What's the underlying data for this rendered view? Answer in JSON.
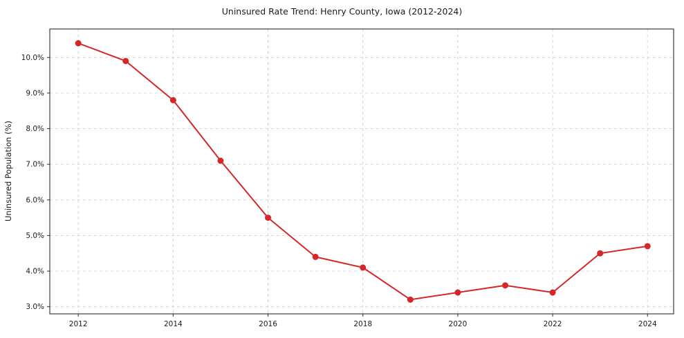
{
  "figure": {
    "background": "#ffffff",
    "frame_color": "#2b2b2b",
    "grid_color": "#d0d0d0",
    "text_color": "#1a1a1a"
  },
  "chart_data": {
    "type": "line",
    "title": "Uninsured Rate Trend: Henry County, Iowa (2012-2024)",
    "xlabel": "",
    "ylabel": "Uninsured Population (%)",
    "x": [
      2012,
      2013,
      2014,
      2015,
      2016,
      2017,
      2018,
      2019,
      2020,
      2021,
      2022,
      2023,
      2024
    ],
    "series": [
      {
        "name": "Uninsured Rate",
        "values": [
          10.4,
          9.9,
          8.8,
          7.1,
          5.5,
          4.4,
          4.1,
          3.2,
          3.4,
          3.6,
          3.4,
          4.5,
          4.7
        ]
      }
    ],
    "xlim": [
      2011.4,
      2024.55
    ],
    "ylim": [
      2.8,
      10.8
    ],
    "x_tick_values": [
      2012,
      2014,
      2016,
      2018,
      2020,
      2022,
      2024
    ],
    "x_tick_labels": [
      "2012",
      "2014",
      "2016",
      "2018",
      "2020",
      "2022",
      "2024"
    ],
    "y_tick_values": [
      3,
      4,
      5,
      6,
      7,
      8,
      9,
      10
    ],
    "y_tick_labels": [
      "3.0%",
      "4.0%",
      "5.0%",
      "6.0%",
      "7.0%",
      "8.0%",
      "9.0%",
      "10.0%"
    ],
    "grid": true,
    "grid_style": "dashed",
    "legend": "none",
    "line_color": "#d62728",
    "marker": "circle",
    "marker_size": 4.5,
    "line_width": 2
  }
}
